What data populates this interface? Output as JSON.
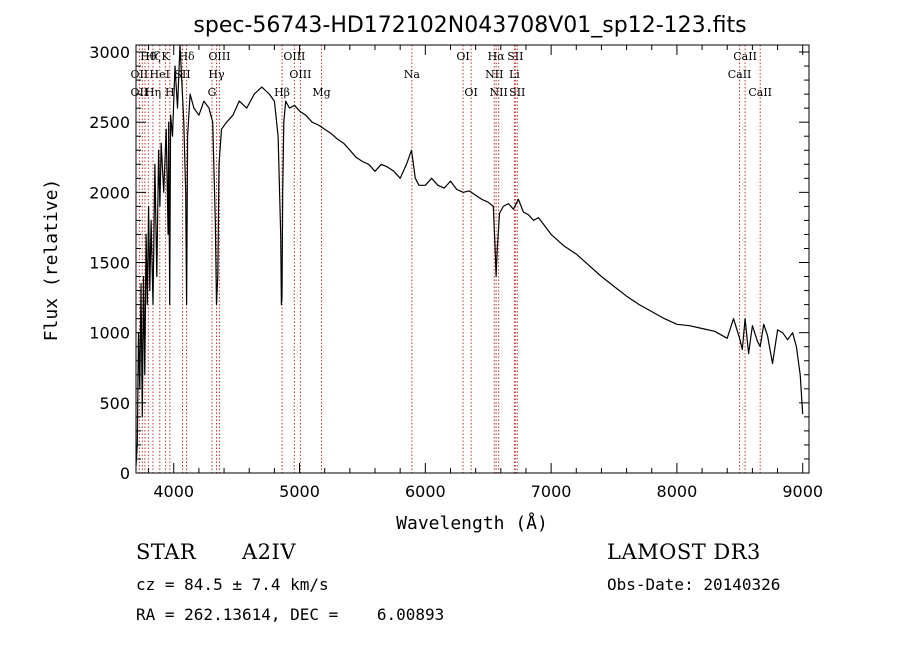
{
  "chart_data": {
    "type": "line",
    "title": "spec-56743-HD172102N043708V01_sp12-123.fits",
    "xlabel": "Wavelength (Å)",
    "ylabel": "Flux (relative)",
    "xlim": [
      3700,
      9050
    ],
    "ylim": [
      0,
      3050
    ],
    "xticks": [
      4000,
      5000,
      6000,
      7000,
      8000,
      9000
    ],
    "yticks": [
      0,
      500,
      1000,
      1500,
      2000,
      2500,
      3000
    ],
    "series": [
      {
        "name": "spectrum",
        "x": [
          3700,
          3710,
          3720,
          3730,
          3740,
          3750,
          3760,
          3770,
          3780,
          3790,
          3800,
          3810,
          3820,
          3835,
          3850,
          3865,
          3880,
          3890,
          3900,
          3920,
          3940,
          3955,
          3960,
          3968,
          3975,
          3990,
          4010,
          4030,
          4050,
          4080,
          4095,
          4102,
          4110,
          4130,
          4160,
          4200,
          4240,
          4280,
          4310,
          4330,
          4340,
          4350,
          4360,
          4380,
          4420,
          4470,
          4520,
          4580,
          4640,
          4700,
          4760,
          4800,
          4830,
          4850,
          4856,
          4861,
          4866,
          4875,
          4890,
          4920,
          4960,
          5000,
          5050,
          5100,
          5150,
          5200,
          5250,
          5300,
          5350,
          5400,
          5450,
          5500,
          5550,
          5600,
          5650,
          5700,
          5750,
          5800,
          5850,
          5890,
          5920,
          5950,
          6000,
          6050,
          6100,
          6150,
          6200,
          6250,
          6300,
          6350,
          6400,
          6450,
          6500,
          6540,
          6555,
          6563,
          6572,
          6590,
          6620,
          6660,
          6700,
          6740,
          6780,
          6820,
          6860,
          6900,
          6950,
          7000,
          7100,
          7200,
          7300,
          7400,
          7500,
          7600,
          7700,
          7800,
          7900,
          8000,
          8100,
          8200,
          8300,
          8400,
          8450,
          8498,
          8520,
          8542,
          8570,
          8600,
          8640,
          8662,
          8690,
          8720,
          8760,
          8800,
          8840,
          8880,
          8920,
          8950,
          8980,
          9000
        ],
        "values": [
          50,
          200,
          1000,
          600,
          1350,
          400,
          1400,
          700,
          1700,
          1200,
          1900,
          1300,
          1800,
          1200,
          2200,
          1400,
          2300,
          1900,
          2350,
          2000,
          2450,
          1700,
          2500,
          1200,
          2550,
          2400,
          2900,
          2600,
          3050,
          2500,
          2000,
          1200,
          2400,
          2700,
          2600,
          2550,
          2650,
          2600,
          2500,
          1800,
          1200,
          1400,
          2200,
          2450,
          2500,
          2550,
          2650,
          2600,
          2700,
          2750,
          2700,
          2650,
          2400,
          1700,
          1200,
          1250,
          2000,
          2500,
          2650,
          2600,
          2620,
          2580,
          2550,
          2500,
          2480,
          2450,
          2420,
          2380,
          2350,
          2300,
          2250,
          2220,
          2200,
          2150,
          2200,
          2180,
          2150,
          2100,
          2200,
          2300,
          2100,
          2050,
          2050,
          2100,
          2050,
          2030,
          2080,
          2020,
          2000,
          2010,
          1980,
          1950,
          1930,
          1900,
          1600,
          1400,
          1600,
          1850,
          1900,
          1920,
          1880,
          1950,
          1860,
          1840,
          1800,
          1820,
          1760,
          1700,
          1620,
          1560,
          1480,
          1400,
          1330,
          1260,
          1200,
          1150,
          1100,
          1060,
          1050,
          1030,
          1010,
          960,
          1100,
          960,
          880,
          1100,
          850,
          1050,
          940,
          900,
          1060,
          980,
          780,
          1020,
          1000,
          950,
          1000,
          900,
          700,
          420
        ]
      }
    ],
    "annotations": [
      {
        "label": "Hθ",
        "x": 3798,
        "row": 0
      },
      {
        "label": "OII",
        "x": 3727,
        "row": 1
      },
      {
        "label": "OII",
        "x": 3727,
        "row": 2
      },
      {
        "label": "Hζ",
        "x": 3835,
        "row": 0
      },
      {
        "label": "HeI",
        "x": 3889,
        "row": 1
      },
      {
        "label": "Hη",
        "x": 3835,
        "row": 2
      },
      {
        "label": "K",
        "x": 3934,
        "row": 0
      },
      {
        "label": "SII",
        "x": 4070,
        "row": 1
      },
      {
        "label": "H",
        "x": 3969,
        "row": 2
      },
      {
        "label": "Hδ",
        "x": 4102,
        "row": 0
      },
      {
        "label": "OIII",
        "x": 4363,
        "row": 0
      },
      {
        "label": "Hγ",
        "x": 4340,
        "row": 1
      },
      {
        "label": "G",
        "x": 4304,
        "row": 2
      },
      {
        "label": "OIII",
        "x": 4959,
        "row": 0
      },
      {
        "label": "OIII",
        "x": 5007,
        "row": 1
      },
      {
        "label": "Hβ",
        "x": 4861,
        "row": 2
      },
      {
        "label": "Mg",
        "x": 5175,
        "row": 2
      },
      {
        "label": "Na",
        "x": 5893,
        "row": 1
      },
      {
        "label": "OI",
        "x": 6300,
        "row": 0
      },
      {
        "label": "OI",
        "x": 6364,
        "row": 2
      },
      {
        "label": "Hα",
        "x": 6563,
        "row": 0
      },
      {
        "label": "SII",
        "x": 6716,
        "row": 0
      },
      {
        "label": "NII",
        "x": 6548,
        "row": 1
      },
      {
        "label": "Li",
        "x": 6708,
        "row": 1
      },
      {
        "label": "NII",
        "x": 6583,
        "row": 2
      },
      {
        "label": "SII",
        "x": 6731,
        "row": 2
      },
      {
        "label": "CaII",
        "x": 8542,
        "row": 0
      },
      {
        "label": "CaII",
        "x": 8498,
        "row": 1
      },
      {
        "label": "CaII",
        "x": 8662,
        "row": 2
      }
    ],
    "line_positions": [
      3727,
      3750,
      3771,
      3798,
      3835,
      3889,
      3934,
      3969,
      4070,
      4102,
      4304,
      4340,
      4363,
      4861,
      4959,
      5007,
      5175,
      5893,
      6300,
      6364,
      6548,
      6563,
      6583,
      6708,
      6716,
      6731,
      8498,
      8542,
      8662
    ]
  },
  "info": {
    "object_type": "STAR",
    "subclass": "A2IV",
    "redshift": "cz = 84.5 ± 7.4 km/s",
    "coords": "RA = 262.13614, DEC =    6.00893",
    "survey": "LAMOST DR3",
    "obs_date": "Obs-Date: 20140326"
  },
  "colors": {
    "line_marker": "#c0392b",
    "spectrum": "#000000"
  }
}
